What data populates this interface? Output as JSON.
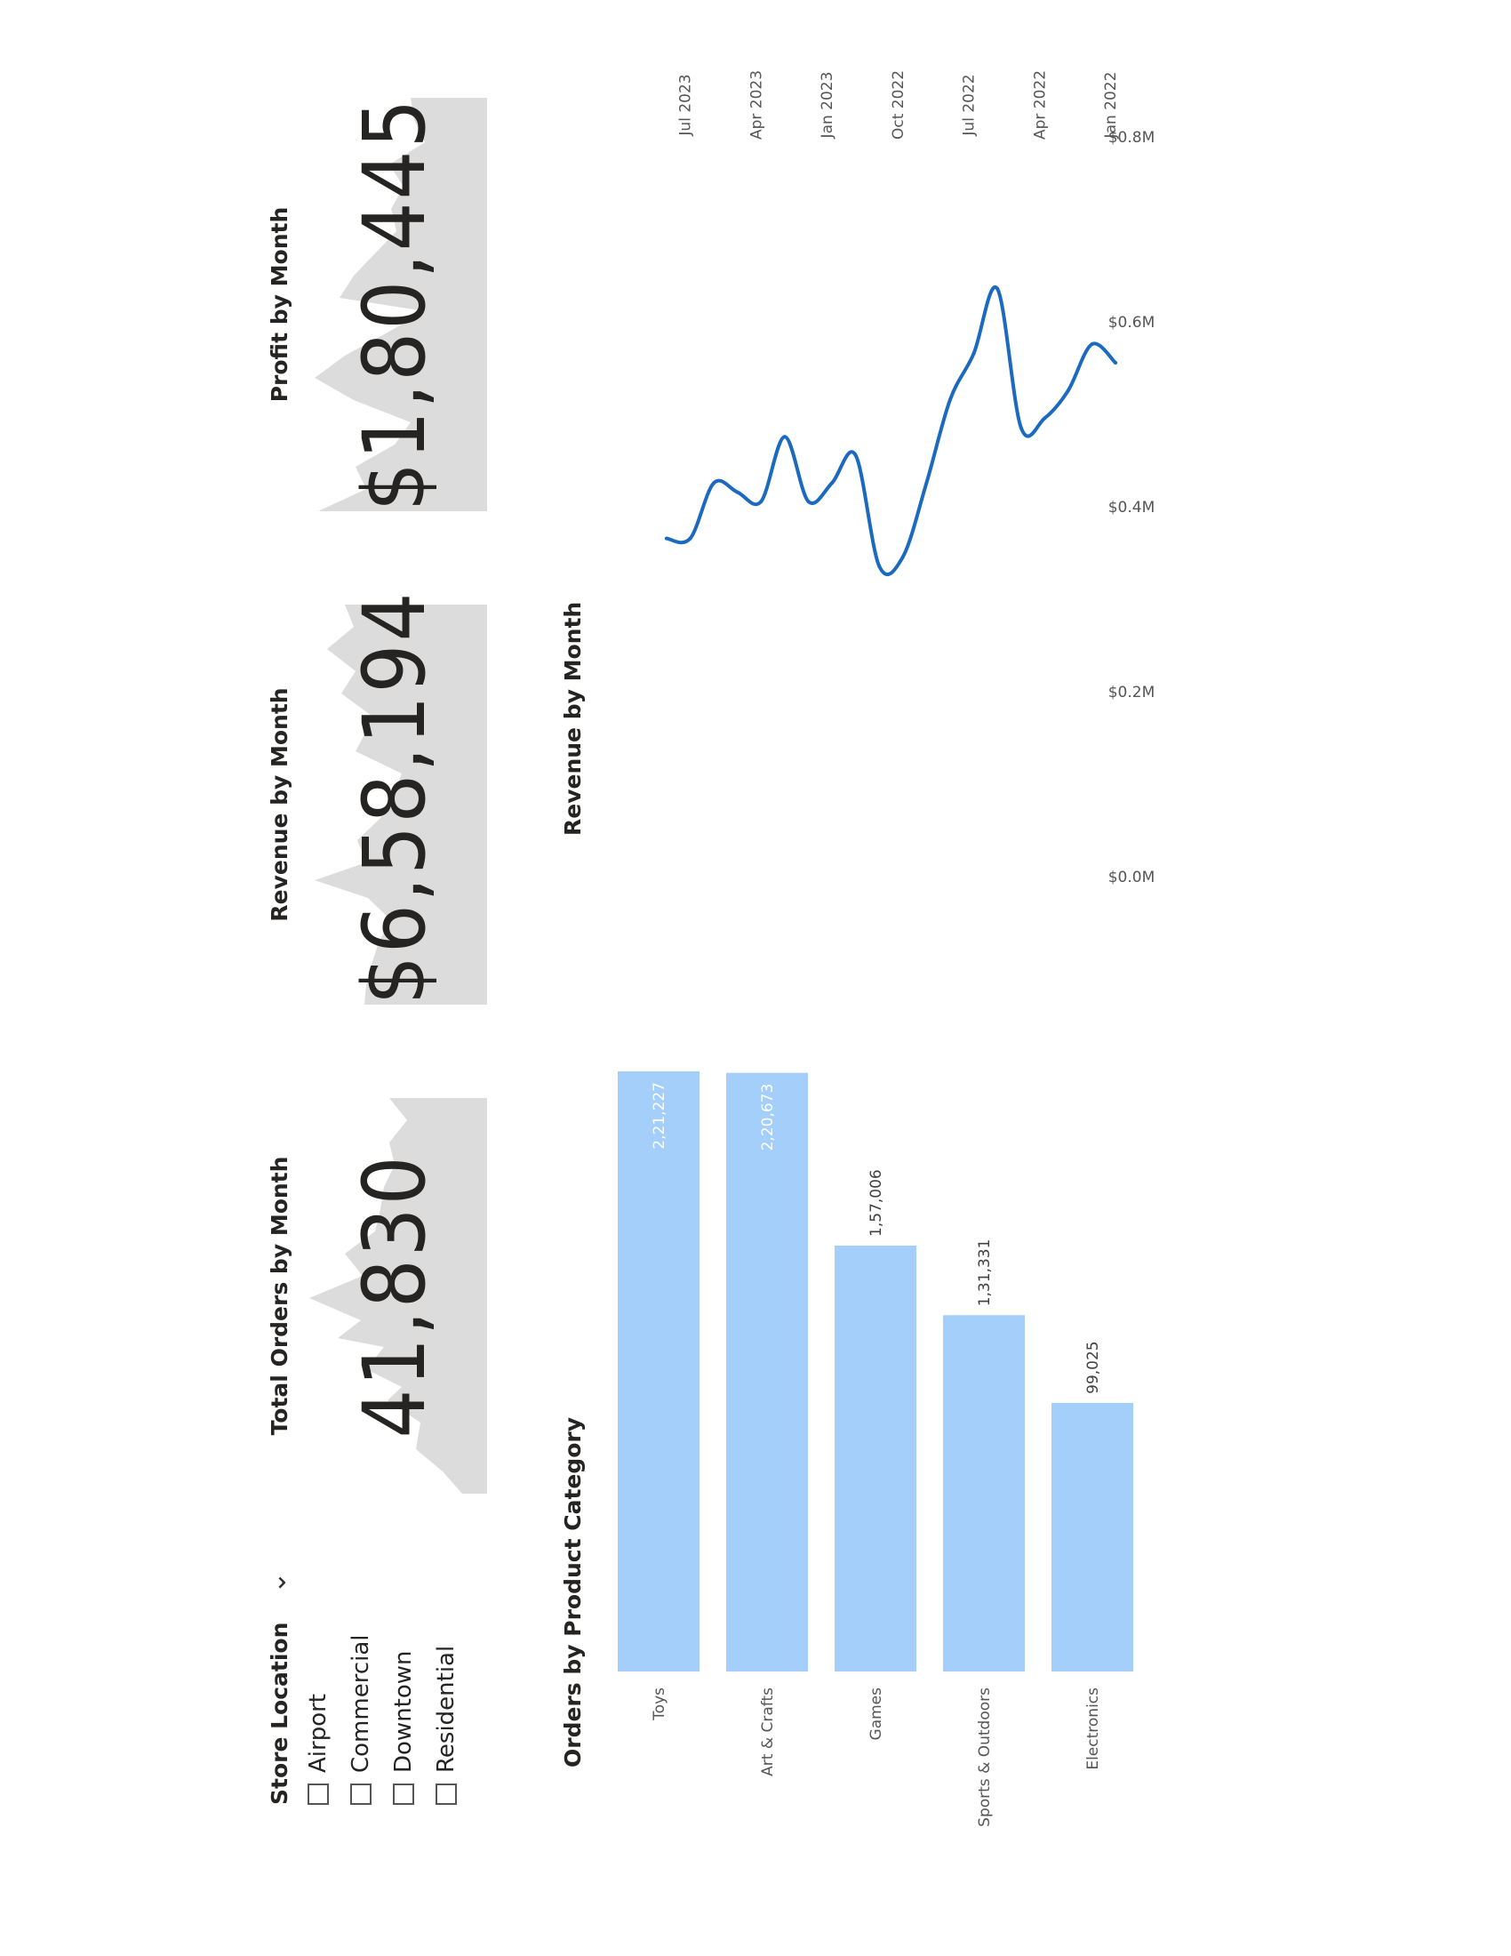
{
  "slicer": {
    "title": "Store Location",
    "chevron_icon": "chevron-down-icon",
    "items": [
      "Airport",
      "Commercial",
      "Downtown",
      "Residential"
    ]
  },
  "cards": [
    {
      "title": "Total Orders by Month",
      "value": "41,830"
    },
    {
      "title": "Revenue by Month",
      "value": "$6,58,194"
    },
    {
      "title": "Profit by Month",
      "value": "$1,80,445"
    }
  ],
  "colors": {
    "bar": "#a3cffa",
    "line": "#1c6ac0",
    "sparkline_fill": "#dcdcdc",
    "text": "#252423",
    "bar_label_inside": "#ffffff",
    "bar_label_outside": "#404040"
  },
  "chart_data": [
    {
      "type": "bar",
      "title": "Orders by Product Category",
      "categories": [
        "Toys",
        "Art & Crafts",
        "Games",
        "Sports & Outdoors",
        "Electronics"
      ],
      "values": [
        221227,
        220673,
        157006,
        131331,
        99025
      ],
      "data_labels": [
        "2,21,227",
        "2,20,673",
        "1,57,006",
        "1,31,331",
        "99,025"
      ],
      "xlabel": "",
      "ylabel": "",
      "grid": false
    },
    {
      "type": "line",
      "title": "Revenue by Month",
      "x": [
        "2022-01",
        "2022-02",
        "2022-03",
        "2022-04",
        "2022-05",
        "2022-06",
        "2022-07",
        "2022-08",
        "2022-09",
        "2022-10",
        "2022-11",
        "2022-12",
        "2023-01",
        "2023-02",
        "2023-03",
        "2023-04",
        "2023-05",
        "2023-06",
        "2023-07",
        "2023-08"
      ],
      "values": [
        0.55,
        0.57,
        0.52,
        0.49,
        0.48,
        0.63,
        0.56,
        0.51,
        0.42,
        0.34,
        0.33,
        0.45,
        0.42,
        0.4,
        0.47,
        0.4,
        0.41,
        0.42,
        0.36,
        0.36
      ],
      "x_tick_labels": [
        "Jan 2022",
        "Apr 2022",
        "Jul 2022",
        "Oct 2022",
        "Jan 2023",
        "Apr 2023",
        "Jul 2023"
      ],
      "y_tick_labels": [
        "$0.0M",
        "$0.2M",
        "$0.4M",
        "$0.6M",
        "$0.8M"
      ],
      "ylim": [
        0,
        0.8
      ],
      "yunit": "$M",
      "grid": false
    }
  ]
}
